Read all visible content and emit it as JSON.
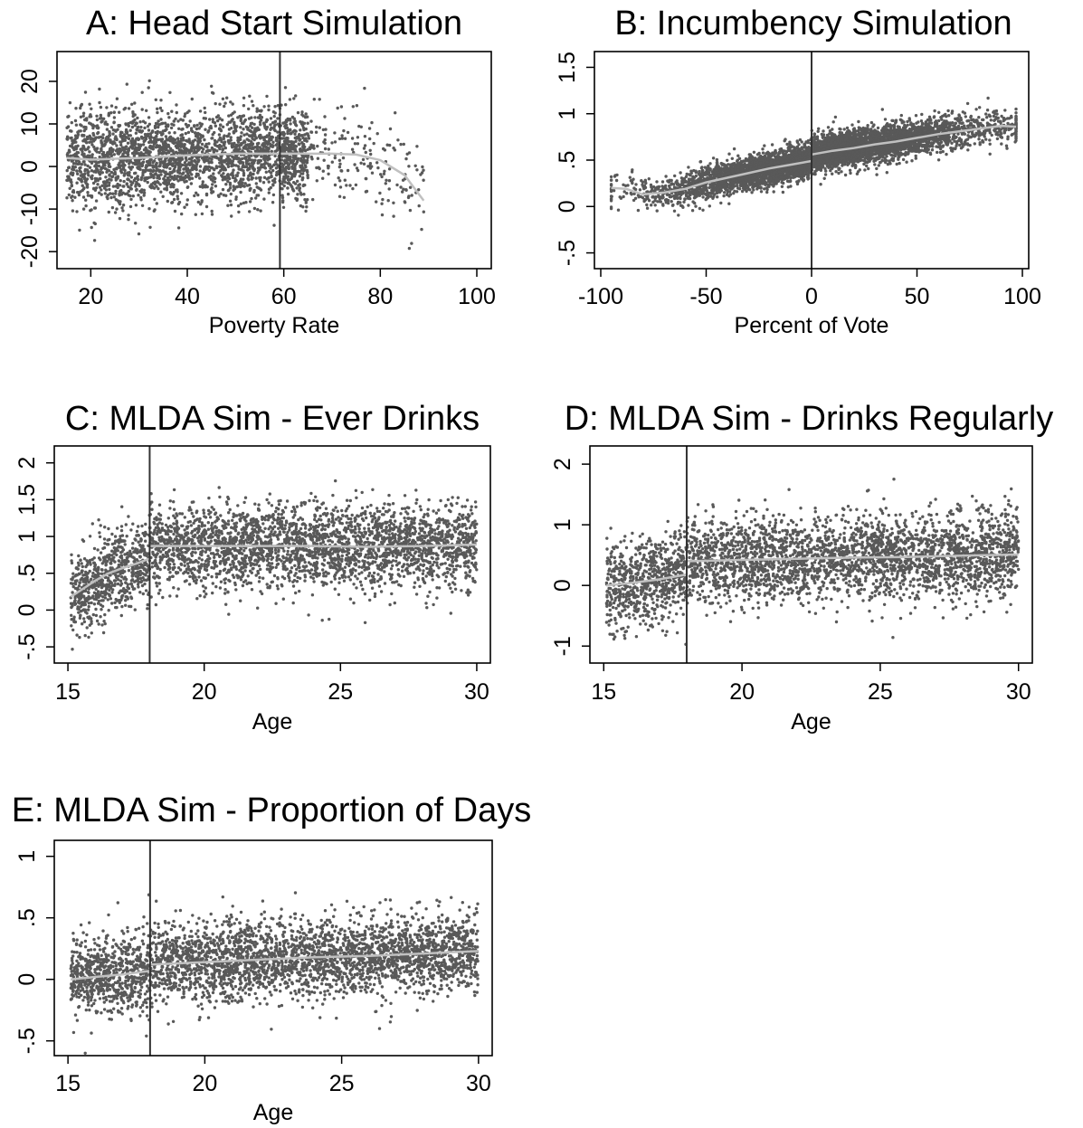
{
  "chart_data": [
    {
      "panel": "A",
      "type": "scatter",
      "title": "A: Head Start Simulation",
      "xlabel": "Poverty Rate",
      "ylabel": "",
      "xlim": [
        13,
        103
      ],
      "ylim": [
        -24,
        27
      ],
      "xticks": [
        20,
        40,
        60,
        80,
        100
      ],
      "xtick_labels": [
        "20",
        "40",
        "60",
        "80",
        "100"
      ],
      "yticks": [
        -20,
        -10,
        0,
        10,
        20
      ],
      "ytick_labels": [
        "-20",
        "-10",
        "0",
        "10",
        "20"
      ],
      "cutoff": 59.2,
      "grid": false,
      "colors": {
        "points": "#595959",
        "fit": "#c0c0c0",
        "cutoff": "#333333"
      },
      "scatter_summary": {
        "n": 2800,
        "x_range": [
          15,
          89
        ],
        "density": "decreasing above 60",
        "noise_sd": 5.5
      },
      "series": [
        {
          "role": "fitted",
          "x": [
            15,
            20,
            30,
            40,
            50,
            59.2,
            65,
            70,
            75,
            80,
            85,
            89
          ],
          "y": [
            2,
            1.6,
            2,
            2.6,
            3,
            3,
            3,
            3,
            2.8,
            1.5,
            -2,
            -8
          ]
        }
      ]
    },
    {
      "panel": "B",
      "type": "scatter",
      "title": "B: Incumbency Simulation",
      "xlabel": "Percent of Vote",
      "ylabel": "",
      "xlim": [
        -103,
        103
      ],
      "ylim": [
        -0.67,
        1.67
      ],
      "xticks": [
        -100,
        -50,
        0,
        50,
        100
      ],
      "xtick_labels": [
        "-100",
        "-50",
        "0",
        "50",
        "100"
      ],
      "yticks": [
        -0.5,
        0,
        0.5,
        1,
        1.5
      ],
      "ytick_labels": [
        "-.5",
        "0",
        ".5",
        "1",
        "1.5"
      ],
      "cutoff": 0,
      "grid": false,
      "colors": {
        "points": "#595959",
        "fit": "#c0c0c0",
        "cutoff": "#333333"
      },
      "scatter_summary": {
        "n": 6000,
        "x_range": [
          -95,
          97
        ],
        "noise_sd": 0.09
      },
      "series": [
        {
          "role": "fitted",
          "x": [
            -95,
            -88,
            -80,
            -70,
            -60,
            -50,
            -40,
            -30,
            -20,
            -10,
            0
          ],
          "y": [
            0.2,
            0.19,
            0.13,
            0.15,
            0.19,
            0.26,
            0.31,
            0.36,
            0.41,
            0.45,
            0.49
          ]
        },
        {
          "role": "fitted",
          "x": [
            0,
            10,
            20,
            30,
            40,
            50,
            60,
            70,
            80,
            90,
            97
          ],
          "y": [
            0.56,
            0.6,
            0.63,
            0.67,
            0.7,
            0.74,
            0.78,
            0.81,
            0.84,
            0.87,
            0.86
          ]
        }
      ]
    },
    {
      "panel": "C",
      "type": "scatter",
      "title": "C: MLDA Sim - Ever Drinks",
      "xlabel": "Age",
      "ylabel": "",
      "xlim": [
        14.5,
        30.5
      ],
      "ylim": [
        -0.72,
        2.23
      ],
      "xticks": [
        15,
        20,
        25,
        30
      ],
      "xtick_labels": [
        "15",
        "20",
        "25",
        "30"
      ],
      "yticks": [
        -0.5,
        0,
        0.5,
        1,
        1.5,
        2
      ],
      "ytick_labels": [
        "-.5",
        "0",
        ".5",
        "1",
        "1.5",
        "2"
      ],
      "cutoff": 18,
      "grid": false,
      "colors": {
        "points": "#595959",
        "fit": "#c0c0c0",
        "cutoff": "#333333"
      },
      "scatter_summary": {
        "n": 3600,
        "x_range": [
          15.1,
          30
        ],
        "noise_sd": 0.28
      },
      "series": [
        {
          "role": "fitted",
          "x": [
            15.1,
            15.6,
            16,
            16.5,
            17,
            17.5,
            18
          ],
          "y": [
            0.18,
            0.3,
            0.4,
            0.5,
            0.57,
            0.63,
            0.7
          ]
        },
        {
          "role": "fitted",
          "x": [
            18,
            20,
            22,
            24,
            26,
            28,
            30
          ],
          "y": [
            0.87,
            0.87,
            0.87,
            0.87,
            0.86,
            0.87,
            0.89
          ]
        }
      ]
    },
    {
      "panel": "D",
      "type": "scatter",
      "title": "D: MLDA Sim - Drinks Regularly",
      "xlabel": "Age",
      "ylabel": "",
      "xlim": [
        14.5,
        30.5
      ],
      "ylim": [
        -1.28,
        2.3
      ],
      "xticks": [
        15,
        20,
        25,
        30
      ],
      "xtick_labels": [
        "15",
        "20",
        "25",
        "30"
      ],
      "yticks": [
        -1,
        0,
        1,
        2
      ],
      "ytick_labels": [
        "-1",
        "0",
        "1",
        "2"
      ],
      "cutoff": 18,
      "grid": false,
      "colors": {
        "points": "#595959",
        "fit": "#c0c0c0",
        "cutoff": "#333333"
      },
      "scatter_summary": {
        "n": 3600,
        "x_range": [
          15.1,
          30
        ],
        "noise_sd": 0.35
      },
      "series": [
        {
          "role": "fitted",
          "x": [
            15.1,
            16,
            17,
            18
          ],
          "y": [
            0,
            0.04,
            0.1,
            0.18
          ]
        },
        {
          "role": "fitted",
          "x": [
            18,
            20,
            22,
            24,
            26,
            28,
            30
          ],
          "y": [
            0.4,
            0.42,
            0.44,
            0.46,
            0.47,
            0.49,
            0.51
          ]
        }
      ]
    },
    {
      "panel": "E",
      "type": "scatter",
      "title": "E: MLDA Sim - Proportion of Days",
      "xlabel": "Age",
      "ylabel": "",
      "xlim": [
        14.5,
        30.5
      ],
      "ylim": [
        -0.62,
        1.13
      ],
      "xticks": [
        15,
        20,
        25,
        30
      ],
      "xtick_labels": [
        "15",
        "20",
        "25",
        "30"
      ],
      "yticks": [
        -0.5,
        0,
        0.5,
        1
      ],
      "ytick_labels": [
        "-.5",
        "0",
        ".5",
        "1"
      ],
      "cutoff": 18,
      "grid": false,
      "colors": {
        "points": "#595959",
        "fit": "#c0c0c0",
        "cutoff": "#333333"
      },
      "scatter_summary": {
        "n": 3600,
        "x_range": [
          15.1,
          30
        ],
        "noise_sd": 0.16
      },
      "series": [
        {
          "role": "fitted",
          "x": [
            15.1,
            16,
            17,
            18
          ],
          "y": [
            0,
            0.02,
            0.04,
            0.07
          ]
        },
        {
          "role": "fitted",
          "x": [
            18,
            20,
            22,
            24,
            26,
            28,
            30
          ],
          "y": [
            0.12,
            0.14,
            0.16,
            0.18,
            0.19,
            0.21,
            0.23
          ]
        }
      ]
    }
  ]
}
